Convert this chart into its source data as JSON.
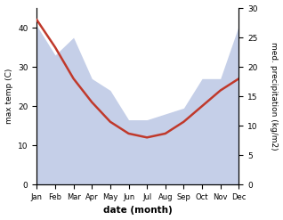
{
  "months": [
    "Jan",
    "Feb",
    "Mar",
    "Apr",
    "May",
    "Jun",
    "Jul",
    "Aug",
    "Sep",
    "Oct",
    "Nov",
    "Dec"
  ],
  "month_indices": [
    0,
    1,
    2,
    3,
    4,
    5,
    6,
    7,
    8,
    9,
    10,
    11
  ],
  "temperature": [
    42,
    35,
    27,
    21,
    16,
    13,
    12,
    13,
    16,
    20,
    24,
    27
  ],
  "precipitation": [
    27,
    22,
    25,
    18,
    16,
    11,
    11,
    12,
    13,
    18,
    18,
    27
  ],
  "temp_ylim": [
    0,
    45
  ],
  "precip_ylim": [
    0,
    30
  ],
  "temp_color": "#c0392b",
  "precip_fill_color": "#c5cfe8",
  "xlabel": "date (month)",
  "ylabel_left": "max temp (C)",
  "ylabel_right": "med. precipitation (kg/m2)",
  "temp_yticks": [
    0,
    10,
    20,
    30,
    40
  ],
  "precip_yticks": [
    0,
    5,
    10,
    15,
    20,
    25,
    30
  ],
  "figsize": [
    3.18,
    2.47
  ],
  "dpi": 100
}
